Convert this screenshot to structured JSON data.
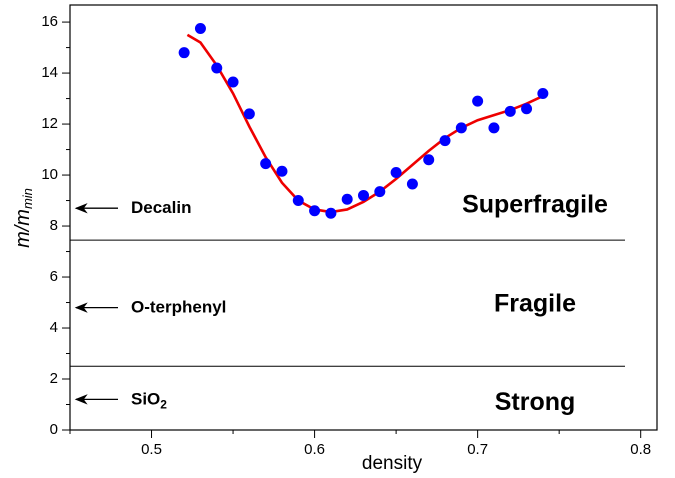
{
  "chart_data": {
    "type": "scatter",
    "xlabel": "density",
    "ylabel": {
      "main": "m/m",
      "sub": "min"
    },
    "xlim": [
      0.45,
      0.81
    ],
    "ylim": [
      0,
      16.67
    ],
    "xticks": [
      0.5,
      0.6,
      0.7,
      0.8
    ],
    "yticks": [
      0,
      2,
      4,
      6,
      8,
      10,
      12,
      14,
      16
    ],
    "xticks_minor": [
      0.45,
      0.55,
      0.65,
      0.75
    ],
    "yticks_minor": [
      1,
      3,
      5,
      7,
      9,
      11,
      13,
      15
    ],
    "points": {
      "color": "#0000ff",
      "x": [
        0.52,
        0.53,
        0.54,
        0.55,
        0.56,
        0.57,
        0.58,
        0.59,
        0.6,
        0.61,
        0.62,
        0.63,
        0.64,
        0.65,
        0.66,
        0.67,
        0.68,
        0.69,
        0.7,
        0.71,
        0.72,
        0.73,
        0.74
      ],
      "values": [
        14.8,
        15.75,
        14.2,
        13.65,
        12.4,
        10.45,
        10.15,
        9.0,
        8.6,
        8.5,
        9.05,
        9.2,
        9.35,
        10.1,
        9.65,
        10.6,
        11.35,
        11.85,
        12.9,
        11.85,
        12.5,
        12.6,
        13.2
      ]
    },
    "fit": {
      "color": "#ee0000",
      "x": [
        0.522,
        0.53,
        0.54,
        0.55,
        0.56,
        0.57,
        0.58,
        0.59,
        0.6,
        0.61,
        0.62,
        0.63,
        0.64,
        0.65,
        0.66,
        0.67,
        0.68,
        0.69,
        0.7,
        0.71,
        0.72,
        0.73,
        0.74
      ],
      "values": [
        15.5,
        15.2,
        14.3,
        13.2,
        11.9,
        10.7,
        9.7,
        9.0,
        8.65,
        8.55,
        8.65,
        8.95,
        9.35,
        9.85,
        10.4,
        10.95,
        11.45,
        11.85,
        12.15,
        12.35,
        12.55,
        12.8,
        13.1
      ]
    },
    "boundaries": [
      7.45,
      2.5
    ],
    "arrows": [
      {
        "y": 8.7,
        "label": {
          "main": "Decalin"
        }
      },
      {
        "y": 4.8,
        "label": {
          "main": "O-terphenyl"
        }
      },
      {
        "y": 1.2,
        "label": {
          "main": "SiO",
          "sub": "2"
        }
      }
    ],
    "regions": [
      {
        "label": "Superfragile",
        "y": 8.8
      },
      {
        "label": "Fragile",
        "y": 4.9
      },
      {
        "label": "Strong",
        "y": 1.05
      }
    ]
  }
}
